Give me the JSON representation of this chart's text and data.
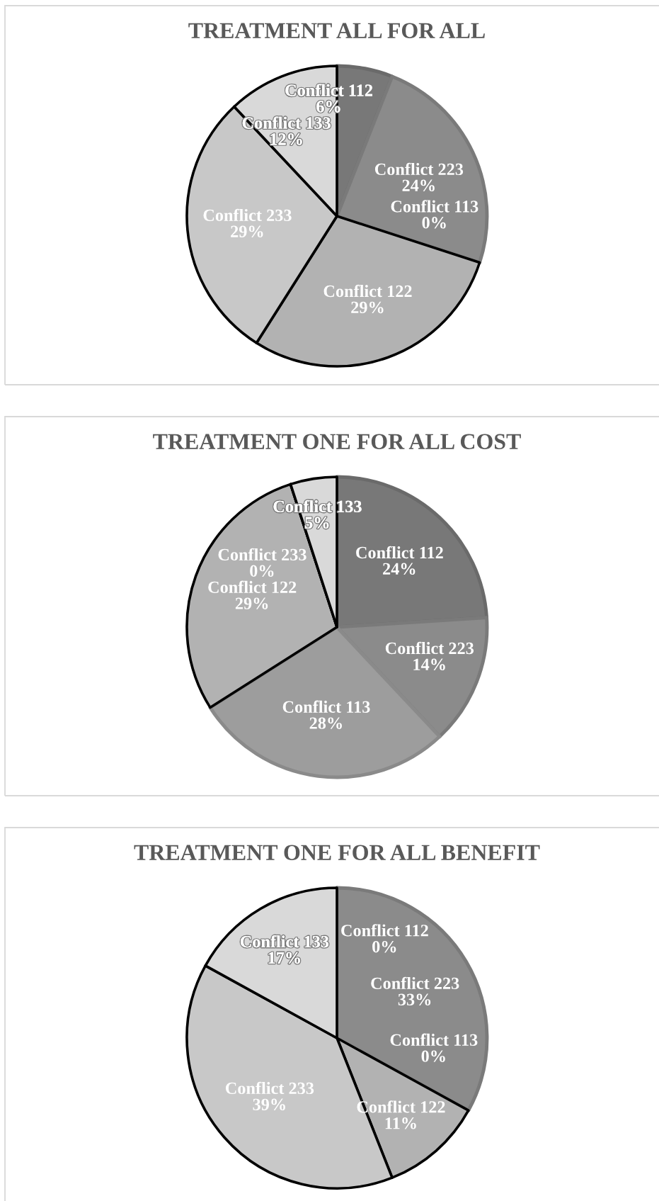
{
  "chart_data": [
    {
      "type": "pie",
      "title": "TREATMENT ALL FOR ALL",
      "categories": [
        "Conflict 112",
        "Conflict 223",
        "Conflict 113",
        "Conflict 122",
        "Conflict 233",
        "Conflict 133"
      ],
      "values": [
        6,
        24,
        0,
        29,
        29,
        12
      ],
      "value_labels": [
        "6%",
        "24%",
        "0%",
        "29%",
        "29%",
        "12%"
      ],
      "colors": [
        "#787878",
        "#8b8b8b",
        "#9d9d9d",
        "#b2b2b2",
        "#c8c8c8",
        "#d9d9d9"
      ]
    },
    {
      "type": "pie",
      "title": "TREATMENT ONE FOR ALL COST",
      "categories": [
        "Conflict 112",
        "Conflict 223",
        "Conflict 113",
        "Conflict 122",
        "Conflict 233",
        "Conflict 133"
      ],
      "values": [
        24,
        14,
        28,
        29,
        0,
        5
      ],
      "value_labels": [
        "24%",
        "14%",
        "28%",
        "29%",
        "0%",
        "5%"
      ],
      "colors": [
        "#787878",
        "#8b8b8b",
        "#9d9d9d",
        "#b2b2b2",
        "#c8c8c8",
        "#d9d9d9"
      ]
    },
    {
      "type": "pie",
      "title": "TREATMENT ONE FOR ALL BENEFIT",
      "categories": [
        "Conflict 112",
        "Conflict 223",
        "Conflict 113",
        "Conflict 122",
        "Conflict 233",
        "Conflict 133"
      ],
      "values": [
        0,
        33,
        0,
        11,
        39,
        17
      ],
      "value_labels": [
        "0%",
        "33%",
        "0%",
        "11%",
        "39%",
        "17%"
      ],
      "colors": [
        "#787878",
        "#8b8b8b",
        "#9d9d9d",
        "#b2b2b2",
        "#c8c8c8",
        "#d9d9d9"
      ]
    }
  ]
}
